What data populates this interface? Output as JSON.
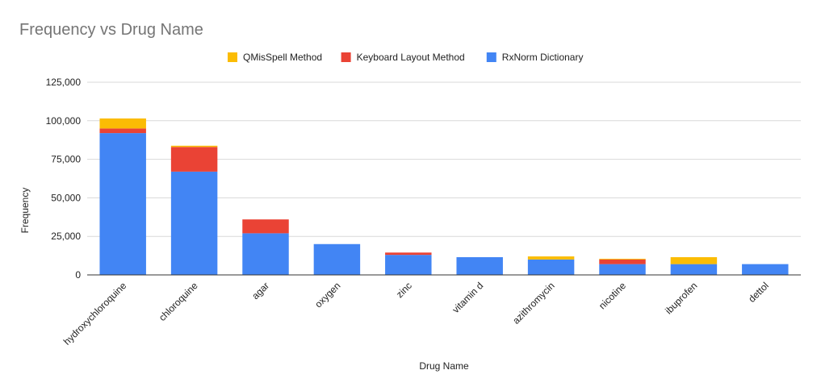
{
  "chart_data": {
    "type": "bar",
    "stacked": true,
    "title": "Frequency vs Drug Name",
    "xlabel": "Drug Name",
    "ylabel": "Frequency",
    "ylim": [
      0,
      125000
    ],
    "yticks": [
      0,
      25000,
      50000,
      75000,
      100000,
      125000
    ],
    "ytick_labels": [
      "0",
      "25,000",
      "50,000",
      "75,000",
      "100,000",
      "125,000"
    ],
    "grid": true,
    "legend_position": "top",
    "categories": [
      "hydroxychloroquine",
      "chloroquine",
      "agar",
      "oxygen",
      "zinc",
      "vitamin d",
      "azithromycin",
      "nicotine",
      "ibuprofen",
      "dettol"
    ],
    "series": [
      {
        "name": "RxNorm Dictionary",
        "color": "#4285F4",
        "values": [
          92000,
          67000,
          27000,
          20000,
          13000,
          11500,
          10000,
          7000,
          7000,
          7000
        ]
      },
      {
        "name": "Keyboard Layout Method",
        "color": "#EA4335",
        "values": [
          3000,
          16000,
          9000,
          0,
          1500,
          0,
          0,
          3000,
          0,
          0
        ]
      },
      {
        "name": "QMisSpell Method",
        "color": "#FBBC04",
        "values": [
          6500,
          800,
          0,
          0,
          0,
          0,
          2000,
          500,
          4500,
          0
        ]
      }
    ],
    "legend_order": [
      "QMisSpell Method",
      "Keyboard Layout Method",
      "RxNorm Dictionary"
    ]
  }
}
